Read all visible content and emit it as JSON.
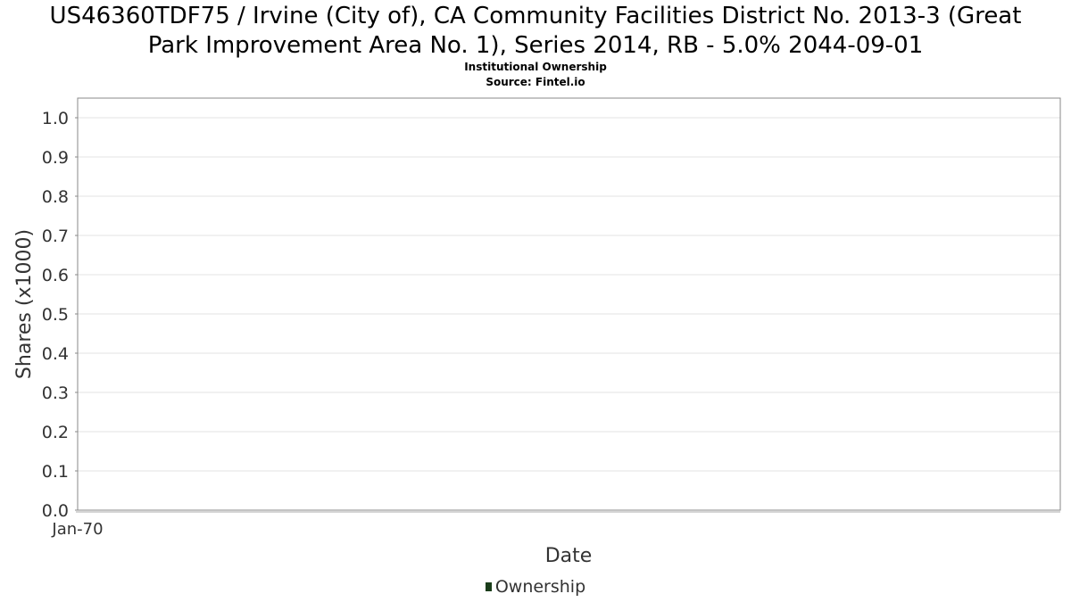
{
  "chart_data": {
    "type": "line",
    "title_line1": "US46360TDF75 / Irvine (City of), CA Community Facilities District No. 2013-3 (Great",
    "title_line2": "Park Improvement Area No. 1), Series 2014, RB - 5.0% 2044-09-01",
    "subtitle": "Institutional Ownership",
    "source": "Source: Fintel.io",
    "xlabel": "Date",
    "ylabel": "Shares (x1000)",
    "x_ticks": [
      "Jan-70"
    ],
    "ylim": [
      0,
      1.0
    ],
    "y_ticks": [
      "0.0",
      "0.1",
      "0.2",
      "0.3",
      "0.4",
      "0.5",
      "0.6",
      "0.7",
      "0.8",
      "0.9",
      "1.0"
    ],
    "grid": true,
    "legend_position": "bottom-center",
    "series": [
      {
        "name": "Ownership",
        "color": "#1a3d1a",
        "x": [],
        "values": []
      }
    ]
  }
}
